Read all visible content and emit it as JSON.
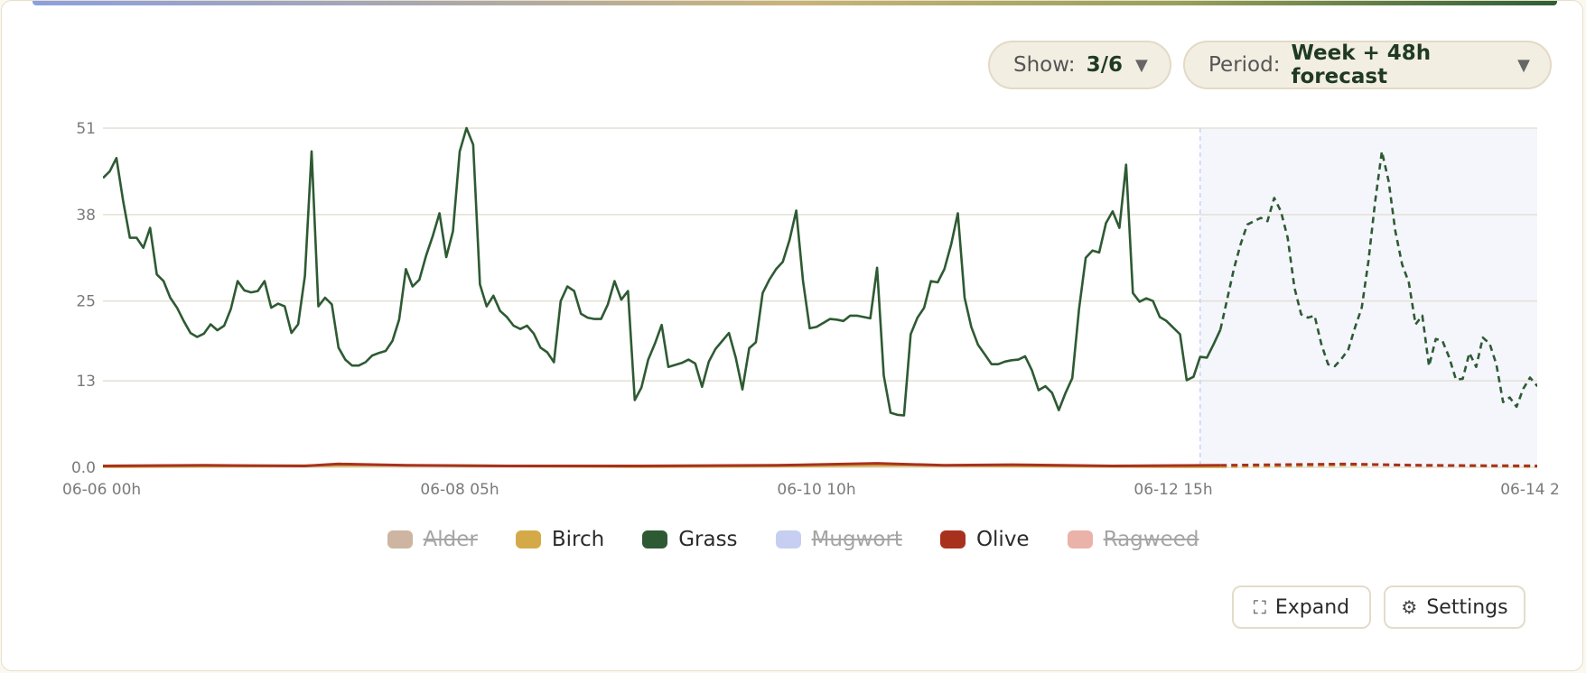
{
  "controls": {
    "show_label": "Show:",
    "show_value": "3/6",
    "period_label": "Period:",
    "period_value": "Week + 48h forecast"
  },
  "legend": [
    {
      "name": "Alder",
      "color": "#cdb5a1",
      "active": false
    },
    {
      "name": "Birch",
      "color": "#d3aa47",
      "active": true
    },
    {
      "name": "Grass",
      "color": "#2e5a33",
      "active": true
    },
    {
      "name": "Mugwort",
      "color": "#c6cff2",
      "active": false
    },
    {
      "name": "Olive",
      "color": "#a8311d",
      "active": true
    },
    {
      "name": "Ragweed",
      "color": "#eab2a8",
      "active": false
    }
  ],
  "buttons": {
    "expand_label": "Expand",
    "expand_icon": "expand-icon",
    "settings_label": "Settings",
    "settings_icon": "gear-icon"
  },
  "chart_data": {
    "type": "line",
    "x_unit_hours": true,
    "x_range_hours": [
      0,
      211
    ],
    "x_ticks": [
      {
        "hours": 0,
        "label": "06-06 00h"
      },
      {
        "hours": 53,
        "label": "06-08 05h"
      },
      {
        "hours": 106,
        "label": "06-10 10h"
      },
      {
        "hours": 159,
        "label": "06-12 15h"
      },
      {
        "hours": 212,
        "label": "06-14 2"
      }
    ],
    "y_ticks": [
      "0.0",
      "13",
      "25",
      "38",
      "51"
    ],
    "ylim": [
      0,
      51
    ],
    "grid": true,
    "forecast_start_hours": 163,
    "colors": {
      "forecast_shade": "#f4f6fc",
      "forecast_line": "#c9d3f5",
      "grid": "#e3e0d3"
    },
    "series": [
      {
        "name": "Grass",
        "color": "#2e5a33",
        "points": [
          [
            0,
            43.5
          ],
          [
            1,
            44.5
          ],
          [
            2,
            46.5
          ],
          [
            3,
            40
          ],
          [
            4,
            34.5
          ],
          [
            5,
            34.5
          ],
          [
            6,
            33
          ],
          [
            7,
            36
          ],
          [
            8,
            29
          ],
          [
            9,
            28
          ],
          [
            10,
            25.5
          ],
          [
            11,
            24
          ],
          [
            12,
            22
          ],
          [
            13,
            20.2
          ],
          [
            14,
            19.6
          ],
          [
            15,
            20.1
          ],
          [
            16,
            21.5
          ],
          [
            17,
            20.6
          ],
          [
            18,
            21.3
          ],
          [
            19,
            23.8
          ],
          [
            20,
            28
          ],
          [
            21,
            26.6
          ],
          [
            22,
            26.3
          ],
          [
            23,
            26.5
          ],
          [
            24,
            28
          ],
          [
            25,
            24
          ],
          [
            26,
            24.6
          ],
          [
            27,
            24.2
          ],
          [
            28,
            20.2
          ],
          [
            29,
            21.5
          ],
          [
            30,
            28.8
          ],
          [
            31,
            47.5
          ],
          [
            32,
            24.2
          ],
          [
            33,
            25.5
          ],
          [
            34,
            24.5
          ],
          [
            35,
            18
          ],
          [
            36,
            16.2
          ],
          [
            37,
            15.3
          ],
          [
            38,
            15.3
          ],
          [
            39,
            15.8
          ],
          [
            40,
            16.8
          ],
          [
            41,
            17.2
          ],
          [
            42,
            17.5
          ],
          [
            43,
            19
          ],
          [
            44,
            22.2
          ],
          [
            45,
            29.8
          ],
          [
            46,
            27.2
          ],
          [
            47,
            28.2
          ],
          [
            48,
            31.8
          ],
          [
            49,
            34.8
          ],
          [
            50,
            38.2
          ],
          [
            51,
            31.6
          ],
          [
            52,
            35.5
          ],
          [
            53,
            47.5
          ],
          [
            54,
            51
          ],
          [
            55,
            48.5
          ],
          [
            56,
            27.5
          ],
          [
            57,
            24.2
          ],
          [
            58,
            25.8
          ],
          [
            59,
            23.5
          ],
          [
            60,
            22.6
          ],
          [
            61,
            21.3
          ],
          [
            62,
            20.8
          ],
          [
            63,
            21.3
          ],
          [
            64,
            20.1
          ],
          [
            65,
            18
          ],
          [
            66,
            17.3
          ],
          [
            67,
            15.8
          ],
          [
            68,
            25
          ],
          [
            69,
            27.2
          ],
          [
            70,
            26.5
          ],
          [
            71,
            23.1
          ],
          [
            72,
            22.5
          ],
          [
            73,
            22.3
          ],
          [
            74,
            22.3
          ],
          [
            75,
            24.5
          ],
          [
            76,
            28
          ],
          [
            77,
            25.2
          ],
          [
            78,
            26.5
          ],
          [
            79,
            10.1
          ],
          [
            80,
            12
          ],
          [
            81,
            16.2
          ],
          [
            82,
            18.6
          ],
          [
            83,
            21.4
          ],
          [
            84,
            15.1
          ],
          [
            85,
            15.4
          ],
          [
            86,
            15.7
          ],
          [
            87,
            16.2
          ],
          [
            88,
            15.6
          ],
          [
            89,
            12.1
          ],
          [
            90,
            15.9
          ],
          [
            91,
            17.8
          ],
          [
            92,
            19
          ],
          [
            93,
            20.2
          ],
          [
            94,
            16.5
          ],
          [
            95,
            11.7
          ],
          [
            96,
            17.9
          ],
          [
            97,
            18.8
          ],
          [
            98,
            26.2
          ],
          [
            99,
            28.2
          ],
          [
            100,
            29.8
          ],
          [
            101,
            30.9
          ],
          [
            102,
            34.2
          ],
          [
            103,
            38.6
          ],
          [
            104,
            28
          ],
          [
            105,
            20.9
          ],
          [
            106,
            21.1
          ],
          [
            107,
            21.7
          ],
          [
            108,
            22.3
          ],
          [
            109,
            22.2
          ],
          [
            110,
            22
          ],
          [
            111,
            22.8
          ],
          [
            112,
            22.8
          ],
          [
            113,
            22.6
          ],
          [
            114,
            22.4
          ],
          [
            115,
            30
          ],
          [
            116,
            13.8
          ],
          [
            117,
            8.2
          ],
          [
            118,
            7.9
          ],
          [
            119,
            7.8
          ],
          [
            120,
            20
          ],
          [
            121,
            22.5
          ],
          [
            122,
            24
          ],
          [
            123,
            28
          ],
          [
            124,
            27.8
          ],
          [
            125,
            29.8
          ],
          [
            126,
            33.5
          ],
          [
            127,
            38.2
          ],
          [
            128,
            25.5
          ],
          [
            129,
            21.1
          ],
          [
            130,
            18.4
          ],
          [
            131,
            17
          ],
          [
            132,
            15.5
          ],
          [
            133,
            15.5
          ],
          [
            134,
            15.9
          ],
          [
            135,
            16.1
          ],
          [
            136,
            16.2
          ],
          [
            137,
            16.7
          ],
          [
            138,
            14.6
          ],
          [
            139,
            11.6
          ],
          [
            140,
            12.2
          ],
          [
            141,
            11.2
          ],
          [
            142,
            8.6
          ],
          [
            143,
            11.2
          ],
          [
            144,
            13.4
          ],
          [
            145,
            23.8
          ],
          [
            146,
            31.5
          ],
          [
            147,
            32.6
          ],
          [
            148,
            32.3
          ],
          [
            149,
            36.7
          ],
          [
            150,
            38.5
          ],
          [
            151,
            36
          ],
          [
            152,
            45.5
          ],
          [
            153,
            26.2
          ],
          [
            154,
            24.9
          ],
          [
            155,
            25.4
          ],
          [
            156,
            25
          ],
          [
            157,
            22.6
          ],
          [
            158,
            22
          ],
          [
            159,
            21
          ],
          [
            160,
            20
          ],
          [
            161,
            13.1
          ],
          [
            162,
            13.6
          ],
          [
            163,
            16.6
          ],
          [
            164,
            16.5
          ],
          [
            165,
            18.5
          ],
          [
            166,
            20.7
          ]
        ],
        "forecast_points": [
          [
            166,
            20.7
          ],
          [
            167,
            25.2
          ],
          [
            168,
            29.8
          ],
          [
            169,
            33.5
          ],
          [
            170,
            36.5
          ],
          [
            171,
            37
          ],
          [
            172,
            37.5
          ],
          [
            173,
            37
          ],
          [
            174,
            40.5
          ],
          [
            175,
            38.5
          ],
          [
            176,
            34.5
          ],
          [
            177,
            27
          ],
          [
            178,
            23
          ],
          [
            179,
            22.5
          ],
          [
            180,
            22.8
          ],
          [
            181,
            18.5
          ],
          [
            182,
            15.5
          ],
          [
            183,
            15.2
          ],
          [
            184,
            16.3
          ],
          [
            185,
            17.7
          ],
          [
            186,
            21
          ],
          [
            187,
            24
          ],
          [
            188,
            31
          ],
          [
            189,
            40
          ],
          [
            190,
            47.5
          ],
          [
            191,
            43
          ],
          [
            192,
            35.5
          ],
          [
            193,
            30.5
          ],
          [
            194,
            27.8
          ],
          [
            195,
            21.5
          ],
          [
            196,
            22.8
          ],
          [
            197,
            15.2
          ],
          [
            198,
            19.3
          ],
          [
            199,
            19
          ],
          [
            200,
            16.5
          ],
          [
            201,
            13.2
          ],
          [
            202,
            13.3
          ],
          [
            203,
            17.2
          ],
          [
            204,
            15.1
          ],
          [
            205,
            19.5
          ],
          [
            206,
            18.6
          ],
          [
            207,
            15.5
          ],
          [
            208,
            9.8
          ],
          [
            209,
            10.5
          ],
          [
            210,
            9.1
          ],
          [
            211,
            11.8
          ],
          [
            212,
            13.5
          ],
          [
            213,
            12.3
          ],
          [
            214,
            11.8
          ]
        ]
      },
      {
        "name": "Birch",
        "color": "#d3aa47",
        "points": [
          [
            0,
            0.1
          ],
          [
            40,
            0.3
          ],
          [
            80,
            0.1
          ],
          [
            120,
            0.3
          ],
          [
            160,
            0.1
          ],
          [
            166,
            0.1
          ]
        ],
        "forecast_points": [
          [
            166,
            0.1
          ],
          [
            190,
            0.4
          ],
          [
            214,
            0.1
          ]
        ]
      },
      {
        "name": "Olive",
        "color": "#a8311d",
        "points": [
          [
            0,
            0.2
          ],
          [
            15,
            0.3
          ],
          [
            30,
            0.2
          ],
          [
            35,
            0.5
          ],
          [
            45,
            0.3
          ],
          [
            60,
            0.2
          ],
          [
            80,
            0.2
          ],
          [
            100,
            0.3
          ],
          [
            115,
            0.6
          ],
          [
            125,
            0.3
          ],
          [
            135,
            0.4
          ],
          [
            150,
            0.2
          ],
          [
            166,
            0.3
          ]
        ],
        "forecast_points": [
          [
            166,
            0.3
          ],
          [
            185,
            0.5
          ],
          [
            195,
            0.3
          ],
          [
            214,
            0.2
          ]
        ]
      }
    ]
  }
}
